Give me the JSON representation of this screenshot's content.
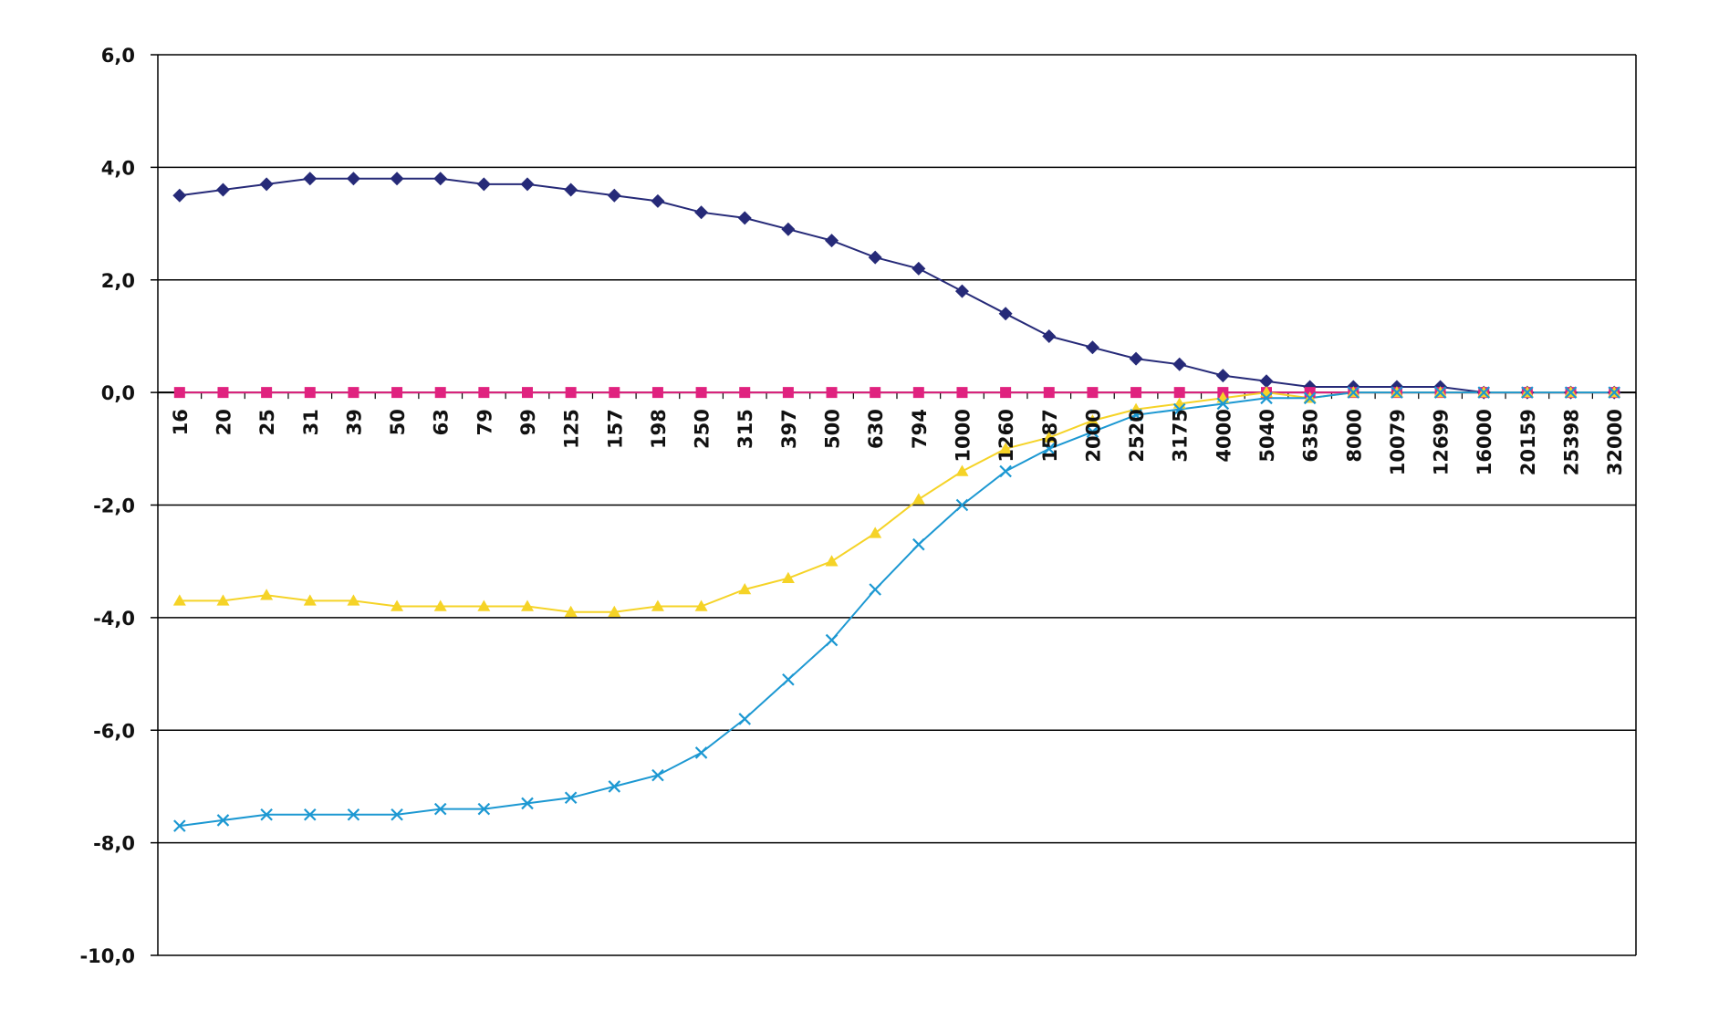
{
  "chart_data": {
    "type": "line",
    "title": "",
    "xlabel": "",
    "ylabel": "",
    "ylim": [
      -10,
      6
    ],
    "y_ticks": [
      6,
      4,
      2,
      0,
      -2,
      -4,
      -6,
      -8,
      -10
    ],
    "y_tick_labels": [
      "6,0",
      "4,0",
      "2,0",
      "0,0",
      "-2,0",
      "-4,0",
      "-6,0",
      "-8,0",
      "-10,0"
    ],
    "grid": "horizontal",
    "legend": "none",
    "categories": [
      "16",
      "20",
      "25",
      "31",
      "39",
      "50",
      "63",
      "79",
      "99",
      "125",
      "157",
      "198",
      "250",
      "315",
      "397",
      "500",
      "630",
      "794",
      "1000",
      "1260",
      "1587",
      "2000",
      "2520",
      "3175",
      "4000",
      "5040",
      "6350",
      "8000",
      "10079",
      "12699",
      "16000",
      "20159",
      "25398",
      "32000"
    ],
    "series": [
      {
        "color": "#262a78",
        "marker": "diamond",
        "values": [
          3.5,
          3.6,
          3.7,
          3.8,
          3.8,
          3.8,
          3.8,
          3.7,
          3.7,
          3.6,
          3.5,
          3.4,
          3.2,
          3.1,
          2.9,
          2.7,
          2.4,
          2.2,
          1.8,
          1.4,
          1.0,
          0.8,
          0.6,
          0.5,
          0.3,
          0.2,
          0.1,
          0.1,
          0.1,
          0.1,
          0.0,
          0.0,
          0.0,
          0.0
        ]
      },
      {
        "color": "#e0227f",
        "marker": "square",
        "values": [
          0,
          0,
          0,
          0,
          0,
          0,
          0,
          0,
          0,
          0,
          0,
          0,
          0,
          0,
          0,
          0,
          0,
          0,
          0,
          0,
          0,
          0,
          0,
          0,
          0,
          0,
          0,
          0,
          0,
          0,
          0,
          0,
          0,
          0
        ]
      },
      {
        "color": "#f5d327",
        "marker": "triangle",
        "values": [
          -3.7,
          -3.7,
          -3.6,
          -3.7,
          -3.7,
          -3.8,
          -3.8,
          -3.8,
          -3.8,
          -3.9,
          -3.9,
          -3.8,
          -3.8,
          -3.5,
          -3.3,
          -3.0,
          -2.5,
          -1.9,
          -1.4,
          -1.0,
          -0.8,
          -0.5,
          -0.3,
          -0.2,
          -0.1,
          0.0,
          -0.1,
          0.0,
          0.0,
          0.0,
          0.0,
          0.0,
          0.0,
          0.0
        ]
      },
      {
        "color": "#1c98d2",
        "marker": "x",
        "values": [
          -7.7,
          -7.6,
          -7.5,
          -7.5,
          -7.5,
          -7.5,
          -7.4,
          -7.4,
          -7.3,
          -7.2,
          -7.0,
          -6.8,
          -6.4,
          -5.8,
          -5.1,
          -4.4,
          -3.5,
          -2.7,
          -2.0,
          -1.4,
          -1.0,
          -0.7,
          -0.4,
          -0.3,
          -0.2,
          -0.1,
          -0.1,
          0.0,
          0.0,
          0.0,
          0.0,
          0.0,
          0.0,
          0.0
        ]
      }
    ]
  }
}
